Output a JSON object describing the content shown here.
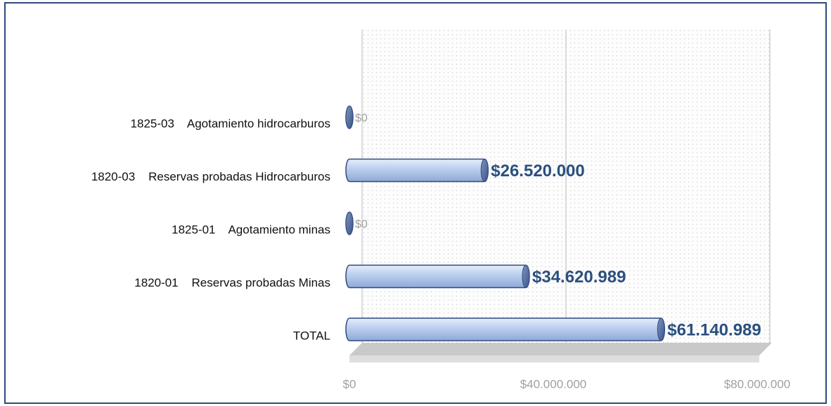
{
  "chart_data": {
    "type": "hbar",
    "categories": [
      "1825-03    Agotamiento hidrocarburos",
      "1820-03    Reservas probadas Hidrocarburos",
      "1825-01    Agotamiento minas",
      "1820-01    Reservas probadas Minas",
      "TOTAL"
    ],
    "values": [
      0,
      26520000,
      0,
      34620989,
      61140989
    ],
    "value_labels": [
      "$0",
      "$26.520.000",
      "$0",
      "$34.620.989",
      "$61.140.989"
    ],
    "color": "#b8cdf0",
    "xlim": [
      0,
      80000000
    ],
    "xticks": [
      {
        "value": 0,
        "label": "$0"
      },
      {
        "value": 40000000,
        "label": "$40.000.000"
      },
      {
        "value": 80000000,
        "label": "$80.000.000"
      }
    ],
    "grid": true
  }
}
